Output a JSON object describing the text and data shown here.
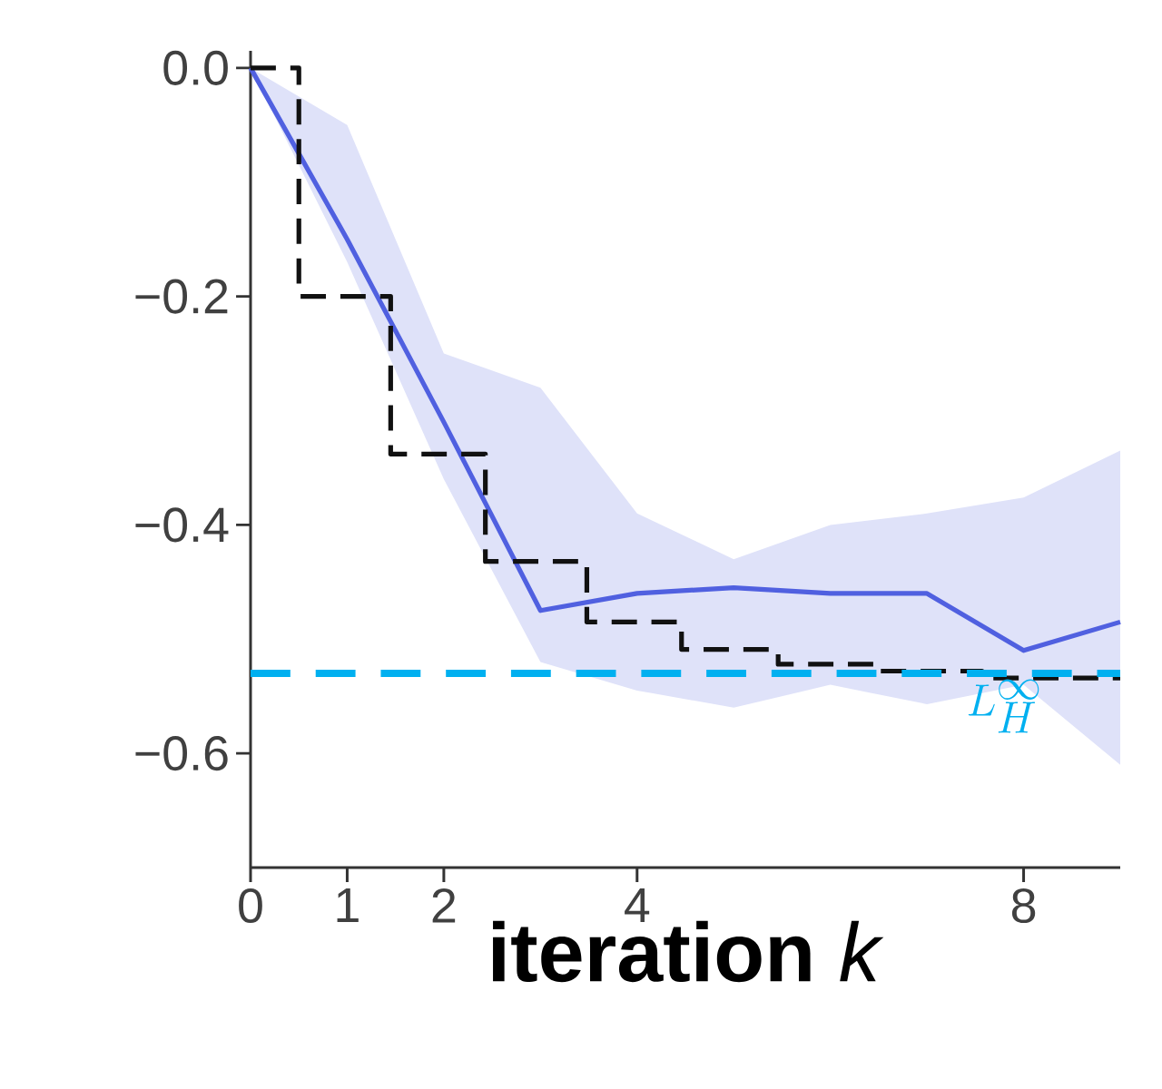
{
  "chart_data": {
    "type": "line",
    "xlabel": "**iteration** *k*",
    "xlim": [
      0,
      9
    ],
    "ylim": [
      -0.7,
      0.015
    ],
    "xticks": [
      0,
      1,
      2,
      4,
      8
    ],
    "yticks": [
      {
        "value": 0,
        "label": "0.0"
      },
      {
        "value": -0.2,
        "label": "−0.2"
      },
      {
        "value": -0.4,
        "label": "−0.4"
      },
      {
        "value": -0.6,
        "label": "−0.6"
      }
    ],
    "series": [
      {
        "color": "#5060e0",
        "line_style": "solid",
        "x": [
          0,
          1,
          2,
          3,
          4,
          5,
          6,
          7,
          8,
          9
        ],
        "values": [
          0,
          -0.15,
          -0.31,
          -0.475,
          -0.46,
          -0.455,
          -0.46,
          -0.46,
          -0.51,
          -0.485
        ],
        "lower": [
          0,
          -0.17,
          -0.36,
          -0.52,
          -0.545,
          -0.56,
          -0.54,
          -0.557,
          -0.54,
          -0.61
        ],
        "upper": [
          0,
          -0.05,
          -0.25,
          -0.28,
          -0.39,
          -0.43,
          -0.4,
          -0.39,
          -0.376,
          -0.335
        ]
      },
      {
        "type": "step",
        "color": "#111111",
        "line_style": "dashed",
        "x": [
          0,
          0.5,
          1.45,
          2.43,
          3.48,
          4.46,
          5.46,
          6.5,
          7.57,
          9
        ],
        "values": [
          0,
          -0.2,
          -0.338,
          -0.432,
          -0.485,
          -0.509,
          -0.522,
          -0.528,
          -0.534,
          -0.534
        ]
      }
    ],
    "ref_lines": [
      {
        "axis": "y",
        "value": -0.53,
        "label": "L_H^{\\infty}",
        "color": "#00b0f0",
        "line_style": "dashed"
      }
    ]
  }
}
